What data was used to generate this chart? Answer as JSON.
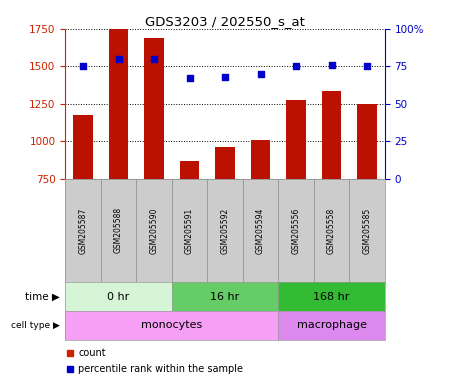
{
  "title": "GDS3203 / 202550_s_at",
  "samples": [
    "GSM205587",
    "GSM205588",
    "GSM205590",
    "GSM205591",
    "GSM205592",
    "GSM205594",
    "GSM205556",
    "GSM205558",
    "GSM205585"
  ],
  "count_values": [
    1175,
    1750,
    1690,
    870,
    960,
    1010,
    1275,
    1335,
    1245
  ],
  "percentile_values": [
    75,
    80,
    80,
    67,
    68,
    70,
    75,
    76,
    75
  ],
  "ylim_left": [
    750,
    1750
  ],
  "ylim_right": [
    0,
    100
  ],
  "yticks_left": [
    750,
    1000,
    1250,
    1500,
    1750
  ],
  "yticks_right": [
    0,
    25,
    50,
    75,
    100
  ],
  "time_groups": [
    {
      "label": "0 hr",
      "start": 0,
      "end": 3,
      "color": "#d6f5d6"
    },
    {
      "label": "16 hr",
      "start": 3,
      "end": 6,
      "color": "#66cc66"
    },
    {
      "label": "168 hr",
      "start": 6,
      "end": 9,
      "color": "#33bb33"
    }
  ],
  "cell_type_groups": [
    {
      "label": "monocytes",
      "start": 0,
      "end": 6,
      "color": "#f5a0f5"
    },
    {
      "label": "macrophage",
      "start": 6,
      "end": 9,
      "color": "#dd88ee"
    }
  ],
  "bar_color": "#bb1100",
  "dot_color": "#0000cc",
  "grid_color": "#000000",
  "sample_bg_color": "#cccccc",
  "left_axis_color": "#cc2200",
  "right_axis_color": "#0000cc",
  "legend_count_color": "#cc2200",
  "legend_dot_color": "#0000cc"
}
